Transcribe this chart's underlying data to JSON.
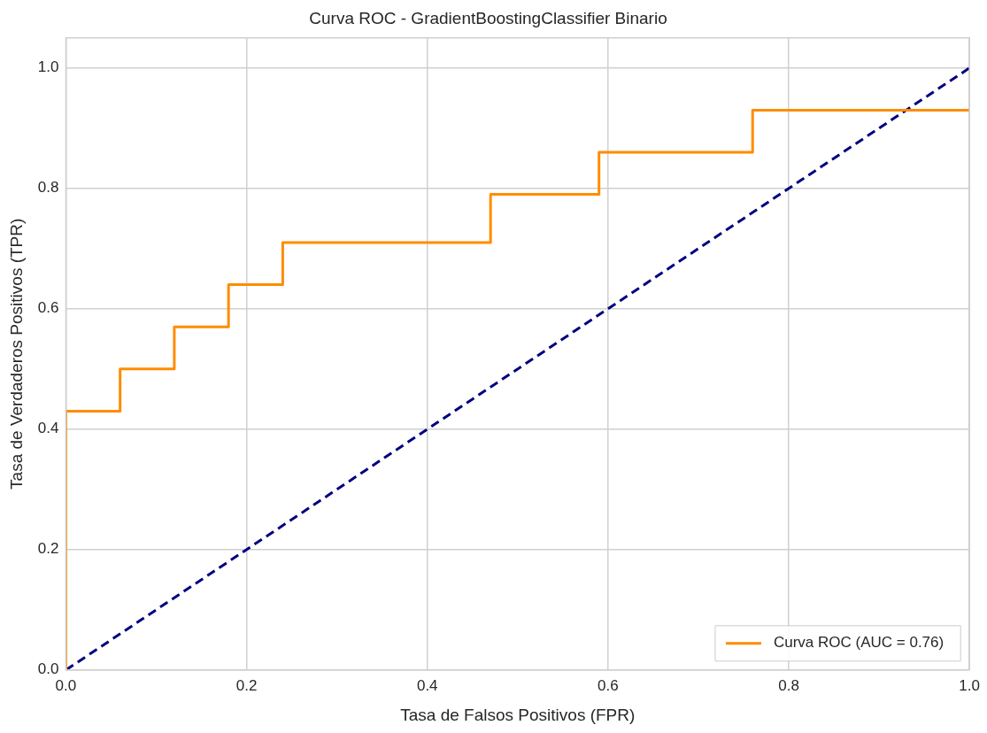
{
  "chart_data": {
    "type": "line",
    "title": "Curva ROC - GradientBoostingClassifier Binario",
    "xlabel": "Tasa de Falsos Positivos (FPR)",
    "ylabel": "Tasa de Verdaderos Positivos (TPR)",
    "xlim": [
      0,
      1
    ],
    "ylim": [
      0,
      1.05
    ],
    "xticks": [
      {
        "value": 0,
        "label": "0.0"
      },
      0.2,
      0.4,
      0.6,
      0.8,
      {
        "value": 1,
        "label": "1.0"
      }
    ],
    "yticks": [
      {
        "value": 0,
        "label": "0.0"
      },
      0.2,
      0.4,
      0.6,
      0.8,
      {
        "value": 1,
        "label": "1.0"
      }
    ],
    "grid": true,
    "legend": "bottom right",
    "marker": "none",
    "series": [
      {
        "name": "Curva ROC (AUC = 0.76)",
        "color": "#ff8c00",
        "line_style": "solid",
        "x": [
          0,
          0,
          0.06,
          0.06,
          0.12,
          0.12,
          0.18,
          0.18,
          0.24,
          0.24,
          0.47,
          0.47,
          0.59,
          0.59,
          0.76,
          0.76,
          1
        ],
        "values": [
          0,
          0.43,
          0.43,
          0.5,
          0.5,
          0.57,
          0.57,
          0.64,
          0.64,
          0.71,
          0.71,
          0.79,
          0.79,
          0.86,
          0.86,
          0.93,
          0.93
        ]
      },
      {
        "color": "#000080",
        "line_style": "dashed",
        "x": [
          0,
          1
        ],
        "values": [
          0,
          1
        ]
      }
    ]
  }
}
